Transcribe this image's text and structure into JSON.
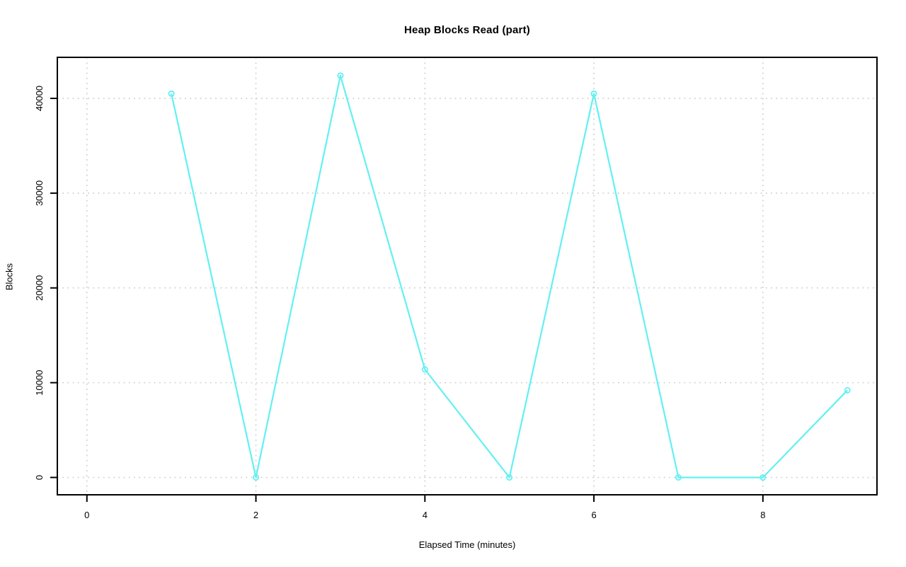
{
  "chart_data": {
    "type": "line",
    "title": "Heap Blocks Read (part)",
    "xlabel": "Elapsed Time (minutes)",
    "ylabel": "Blocks",
    "x": [
      1,
      2,
      3,
      4,
      5,
      6,
      7,
      8,
      9
    ],
    "y": [
      40500,
      0,
      42400,
      11400,
      0,
      40500,
      0,
      0,
      9200
    ],
    "xticks": [
      0,
      2,
      4,
      6,
      8
    ],
    "yticks": [
      0,
      10000,
      20000,
      30000,
      40000
    ],
    "xlim": [
      -0.35,
      9.35
    ],
    "ylim": [
      -1830,
      44330
    ],
    "grid": true,
    "legend": "none",
    "marker": "open-circle",
    "line_color": "#63f0f2",
    "grid_color": "#cdcdcd",
    "axis_color": "#000000",
    "background": "#ffffff"
  }
}
